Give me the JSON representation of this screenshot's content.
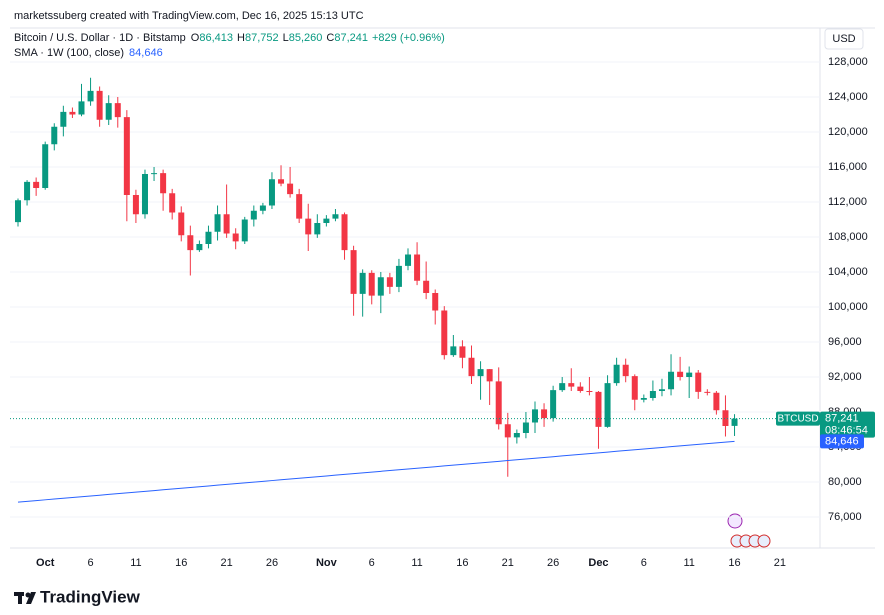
{
  "chart_data": {
    "type": "candlestick",
    "attribution": "marketssuberg created with TradingView.com, Dec 16, 2025 15:13 UTC",
    "title": "Bitcoin / U.S. Dollar · 1D · Bitstamp",
    "currency": "USD",
    "legend": {
      "ohlc": [
        {
          "prefix": "O",
          "label": "86,413"
        },
        {
          "prefix": "H",
          "label": "87,752"
        },
        {
          "prefix": "L",
          "label": "85,260"
        },
        {
          "prefix": "C",
          "label": "87,241"
        }
      ],
      "change": "+829 (+0.96%)"
    },
    "countdown": "08:46:54",
    "categories": [
      null,
      null,
      null,
      "Oct",
      null,
      null,
      null,
      null,
      "6",
      null,
      null,
      null,
      null,
      "11",
      null,
      null,
      null,
      null,
      "16",
      null,
      null,
      null,
      null,
      "21",
      null,
      null,
      null,
      null,
      "26",
      null,
      null,
      null,
      null,
      null,
      "Nov",
      null,
      null,
      null,
      null,
      "6",
      null,
      null,
      null,
      null,
      "11",
      null,
      null,
      null,
      null,
      "16",
      null,
      null,
      null,
      null,
      "21",
      null,
      null,
      null,
      null,
      "26",
      null,
      null,
      null,
      null,
      "Dec",
      null,
      null,
      null,
      null,
      "6",
      null,
      null,
      null,
      null,
      "11",
      null,
      null,
      null,
      null,
      "16",
      null,
      null,
      null,
      null,
      "21",
      null,
      null,
      null,
      null
    ],
    "series": [
      {
        "name": "BTCUSD",
        "type": "candlestick",
        "up_color": "#089981",
        "down_color": "#f23645",
        "last_value_label": "87,241",
        "open": [
          109700,
          112200,
          114300,
          113600,
          118600,
          120600,
          122300,
          122000,
          123500,
          124700,
          121400,
          123300,
          121700,
          112800,
          110600,
          115200,
          115300,
          113000,
          110800,
          108200,
          106500,
          107200,
          108600,
          110600,
          108400,
          107500,
          110000,
          111000,
          111600,
          114600,
          114100,
          112900,
          110100,
          108300,
          109600,
          110100,
          110600,
          106500,
          101500,
          103900,
          101300,
          103400,
          102300,
          104700,
          106000,
          103000,
          101600,
          99600,
          94500,
          95500,
          94200,
          92100,
          92900,
          91500,
          86600,
          85100,
          85600,
          86800,
          88300,
          87300,
          90500,
          91300,
          90900,
          90400,
          90300,
          86300,
          91300,
          93400,
          92100,
          89400,
          89600,
          90400,
          90600,
          92600,
          92000,
          92500,
          90300,
          90200,
          88200,
          86413,
          null,
          null,
          null,
          null,
          null,
          null,
          null,
          null,
          null
        ],
        "high": [
          112400,
          114500,
          114800,
          118900,
          121000,
          123000,
          122800,
          125500,
          126200,
          125200,
          124200,
          124000,
          122500,
          113400,
          115700,
          116000,
          115700,
          113500,
          111500,
          109300,
          107600,
          109300,
          111600,
          114000,
          109000,
          110300,
          111600,
          111900,
          115400,
          116200,
          116000,
          113500,
          111800,
          110600,
          110500,
          111200,
          110800,
          107000,
          104300,
          104200,
          104000,
          103900,
          105500,
          106700,
          107400,
          105200,
          102000,
          100100,
          96800,
          96200,
          95600,
          93800,
          92900,
          93100,
          87900,
          86000,
          88000,
          89200,
          89000,
          91000,
          92000,
          93000,
          91400,
          92000,
          90400,
          92200,
          94200,
          94100,
          92300,
          90000,
          91600,
          91800,
          94600,
          94300,
          93200,
          92800,
          90600,
          90400,
          89900,
          87752,
          null,
          null,
          null,
          null,
          null,
          null,
          null,
          null,
          null
        ],
        "low": [
          109200,
          111600,
          112700,
          113400,
          117900,
          119500,
          121600,
          121800,
          123000,
          120600,
          120800,
          120500,
          109800,
          109600,
          110100,
          114400,
          111000,
          110000,
          107500,
          103600,
          106300,
          106700,
          107600,
          107900,
          106600,
          107200,
          109200,
          110600,
          111200,
          113800,
          112500,
          109600,
          106400,
          107900,
          109200,
          109800,
          105400,
          99000,
          98900,
          100300,
          99300,
          101500,
          101700,
          104200,
          102500,
          100900,
          98000,
          94000,
          94300,
          93000,
          91200,
          89400,
          88800,
          86000,
          80600,
          84400,
          85000,
          85600,
          86300,
          86900,
          90300,
          90400,
          90200,
          89900,
          83800,
          86200,
          91000,
          91400,
          88200,
          89100,
          89300,
          89800,
          89900,
          91600,
          89600,
          89500,
          89900,
          87700,
          85200,
          85260,
          null,
          null,
          null,
          null,
          null,
          null,
          null,
          null,
          null
        ],
        "close": [
          112200,
          114300,
          113600,
          118600,
          120600,
          122300,
          122000,
          123500,
          124700,
          121400,
          123300,
          121700,
          112800,
          110600,
          115200,
          115300,
          113000,
          110800,
          108200,
          106500,
          107200,
          108600,
          110600,
          108400,
          107500,
          110000,
          111000,
          111600,
          114600,
          114100,
          112900,
          110100,
          108300,
          109600,
          110100,
          110600,
          106500,
          101500,
          103900,
          101300,
          103400,
          102300,
          104700,
          106000,
          103000,
          101600,
          99600,
          94500,
          95500,
          94200,
          92100,
          92900,
          91500,
          86600,
          85100,
          85600,
          86800,
          88300,
          87300,
          90500,
          91300,
          90900,
          90400,
          90300,
          86300,
          91300,
          93400,
          92100,
          89400,
          89600,
          90400,
          90600,
          92600,
          92000,
          92500,
          90300,
          90200,
          88200,
          86400,
          87241,
          null,
          null,
          null,
          null,
          null,
          null,
          null,
          null,
          null
        ]
      },
      {
        "name": "SMA · 1W (100, close)",
        "type": "line",
        "color": "#2962ff",
        "last_value_label": "84,646",
        "values": [
          77700,
          77788,
          77876,
          77964,
          78052,
          78140,
          78228,
          78316,
          78404,
          78492,
          78580,
          78668,
          78756,
          78844,
          78932,
          79020,
          79108,
          79196,
          79284,
          79372,
          79460,
          79548,
          79636,
          79724,
          79812,
          79900,
          79988,
          80076,
          80164,
          80252,
          80340,
          80428,
          80516,
          80604,
          80692,
          80780,
          80868,
          80956,
          81044,
          81132,
          81220,
          81308,
          81396,
          81484,
          81572,
          81660,
          81748,
          81836,
          81924,
          82012,
          82100,
          82188,
          82276,
          82364,
          82452,
          82540,
          82628,
          82716,
          82804,
          82892,
          82980,
          83068,
          83156,
          83244,
          83332,
          83420,
          83508,
          83596,
          83684,
          83772,
          83860,
          83948,
          84036,
          84124,
          84212,
          84300,
          84388,
          84476,
          84564,
          84646,
          null,
          null,
          null,
          null,
          null,
          null,
          null,
          null,
          null
        ]
      }
    ],
    "ylim": [
      72457,
      131886
    ],
    "yticks": [
      {
        "value": 76000,
        "label": "76,000"
      },
      {
        "value": 80000,
        "label": "80,000"
      },
      {
        "value": 84000,
        "label": "84,000"
      },
      {
        "value": 88000,
        "label": "88,000"
      },
      {
        "value": 92000,
        "label": "92,000"
      },
      {
        "value": 96000,
        "label": "96,000"
      },
      {
        "value": 100000,
        "label": "100,000"
      },
      {
        "value": 104000,
        "label": "104,000"
      },
      {
        "value": 108000,
        "label": "108,000"
      },
      {
        "value": 112000,
        "label": "112,000"
      },
      {
        "value": 116000,
        "label": "116,000"
      },
      {
        "value": 120000,
        "label": "120,000"
      },
      {
        "value": 124000,
        "label": "124,000"
      },
      {
        "value": 128000,
        "label": "128,000"
      }
    ],
    "grid": true
  },
  "brand": "TradingView"
}
